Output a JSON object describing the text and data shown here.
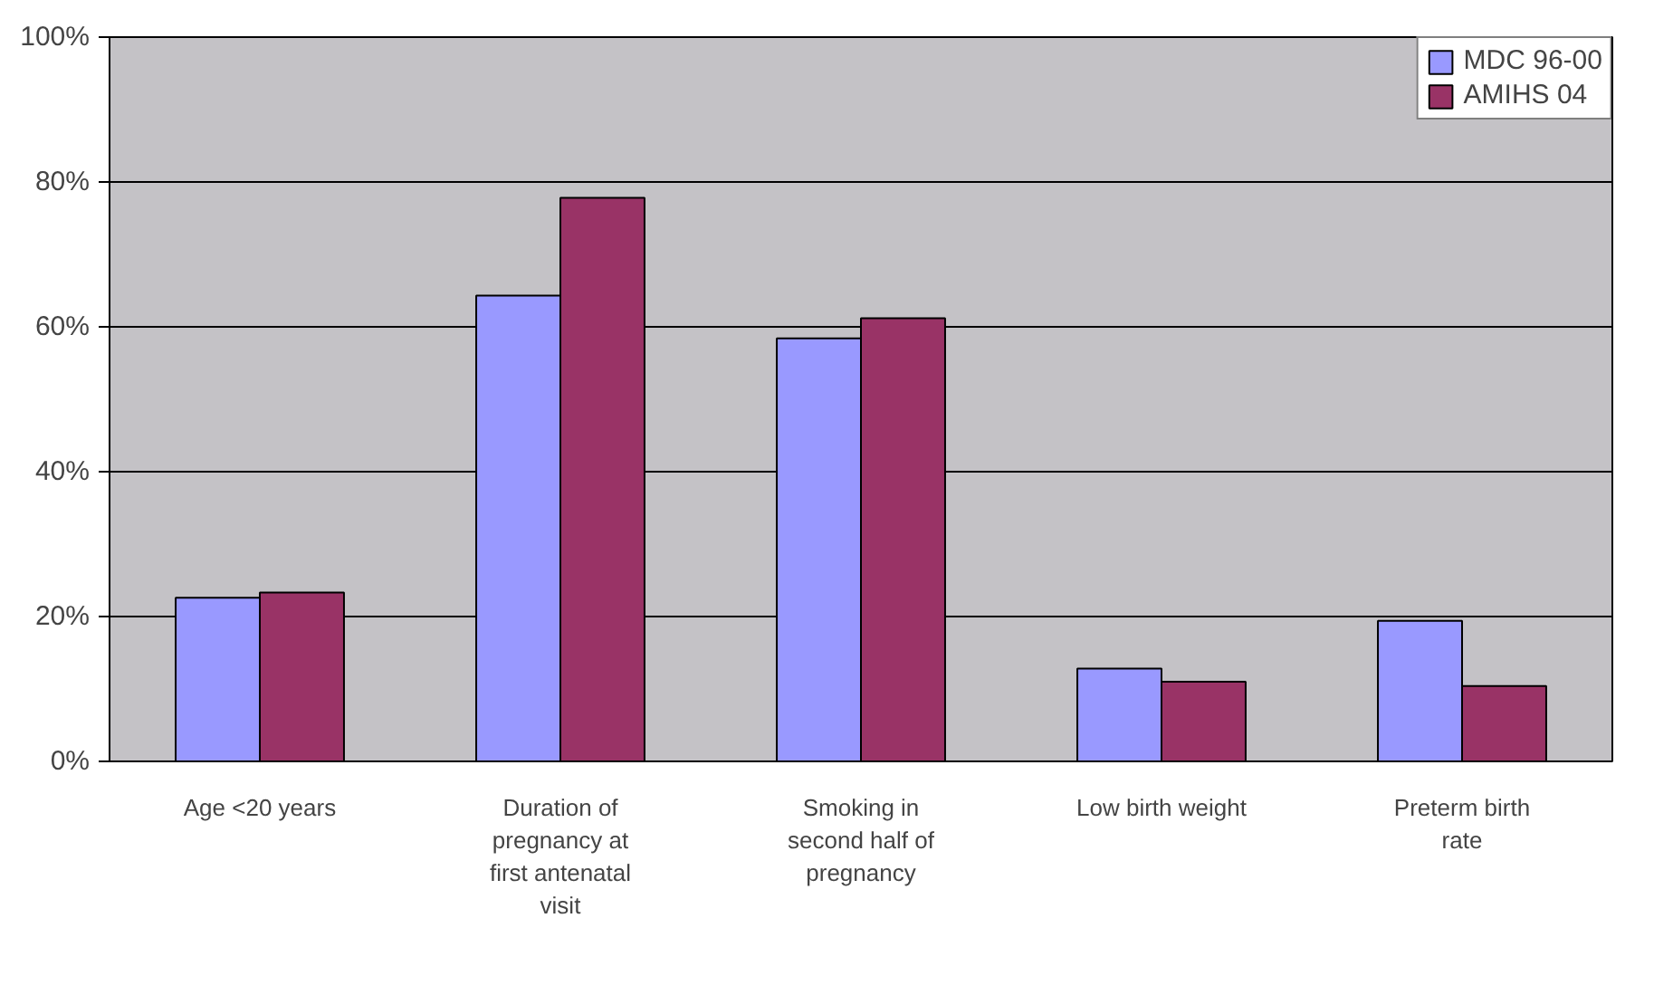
{
  "chart_data": {
    "type": "bar",
    "categories": [
      "Age <20 years",
      "Duration of pregnancy at first antenatal visit",
      "Smoking in second half of pregnancy",
      "Low birth weight",
      "Preterm birth rate"
    ],
    "series": [
      {
        "name": "MDC 96-00",
        "color": "#9999ff",
        "values": [
          22.6,
          64.3,
          58.4,
          12.8,
          19.4
        ]
      },
      {
        "name": "AMIHS 04",
        "color": "#993366",
        "values": [
          23.3,
          77.8,
          61.2,
          11.0,
          10.4
        ]
      }
    ],
    "ylim": [
      0,
      100
    ],
    "yticks": [
      {
        "value": 0,
        "label": "0%"
      },
      {
        "value": 20,
        "label": "20%"
      },
      {
        "value": 40,
        "label": "40%"
      },
      {
        "value": 60,
        "label": "60%"
      },
      {
        "value": 80,
        "label": "80%"
      },
      {
        "value": 100,
        "label": "100%"
      }
    ],
    "grid": "y",
    "legend": "top right"
  }
}
